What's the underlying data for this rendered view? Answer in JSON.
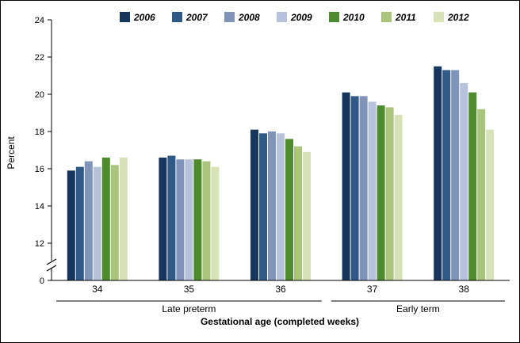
{
  "frame": {
    "background": "#ffffff",
    "border_color": "#000000"
  },
  "chart_data": {
    "type": "bar",
    "title": "",
    "ylabel": "Percent",
    "xlabel": "Gestational age (completed weeks)",
    "categories": [
      "34",
      "35",
      "36",
      "37",
      "38"
    ],
    "category_groups": [
      {
        "label": "Late preterm",
        "from": "34",
        "to": "36"
      },
      {
        "label": "Early term",
        "from": "37",
        "to": "38"
      }
    ],
    "y_ticks": [
      0,
      12,
      14,
      16,
      18,
      20,
      22,
      24
    ],
    "y_axis_break": {
      "between": [
        0,
        12
      ]
    },
    "ylim": [
      0,
      24
    ],
    "grid": false,
    "legend_position": "top",
    "series": [
      {
        "name": "2006",
        "color": "#17365d",
        "values": [
          15.9,
          16.6,
          18.1,
          20.1,
          21.5
        ]
      },
      {
        "name": "2007",
        "color": "#2f5a87",
        "values": [
          16.1,
          16.7,
          17.9,
          19.9,
          21.3
        ]
      },
      {
        "name": "2008",
        "color": "#8093b9",
        "values": [
          16.4,
          16.5,
          18.0,
          19.9,
          21.3
        ]
      },
      {
        "name": "2009",
        "color": "#b7c1dc",
        "values": [
          16.1,
          16.5,
          17.9,
          19.6,
          20.6
        ]
      },
      {
        "name": "2010",
        "color": "#4e8a2e",
        "values": [
          16.6,
          16.5,
          17.6,
          19.4,
          20.1
        ]
      },
      {
        "name": "2011",
        "color": "#aac47e",
        "values": [
          16.2,
          16.4,
          17.2,
          19.3,
          19.2
        ]
      },
      {
        "name": "2012",
        "color": "#d7e3b6",
        "values": [
          16.6,
          16.1,
          16.9,
          18.9,
          18.1
        ]
      }
    ]
  }
}
